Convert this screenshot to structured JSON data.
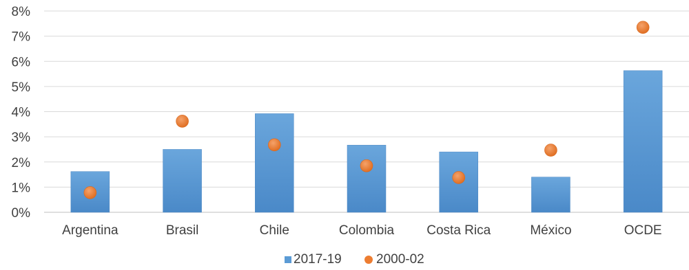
{
  "chart_data": {
    "type": "bar",
    "categories": [
      "Argentina",
      "Brasil",
      "Chile",
      "Colombia",
      "Costa Rica",
      "México",
      "OCDE"
    ],
    "series": [
      {
        "name": "2017-19",
        "kind": "bar",
        "color": "#5b9bd5",
        "values": [
          1.62,
          2.5,
          3.92,
          2.67,
          2.4,
          1.4,
          5.63
        ]
      },
      {
        "name": "2000-02",
        "kind": "marker",
        "color": "#ed7d31",
        "values": [
          0.78,
          3.62,
          2.68,
          1.85,
          1.38,
          2.47,
          7.35
        ]
      }
    ],
    "y_ticks": [
      "0%",
      "1%",
      "2%",
      "3%",
      "4%",
      "5%",
      "6%",
      "7%",
      "8%"
    ],
    "ylim": [
      0,
      8
    ],
    "grid": true,
    "legend_position": "bottom"
  }
}
